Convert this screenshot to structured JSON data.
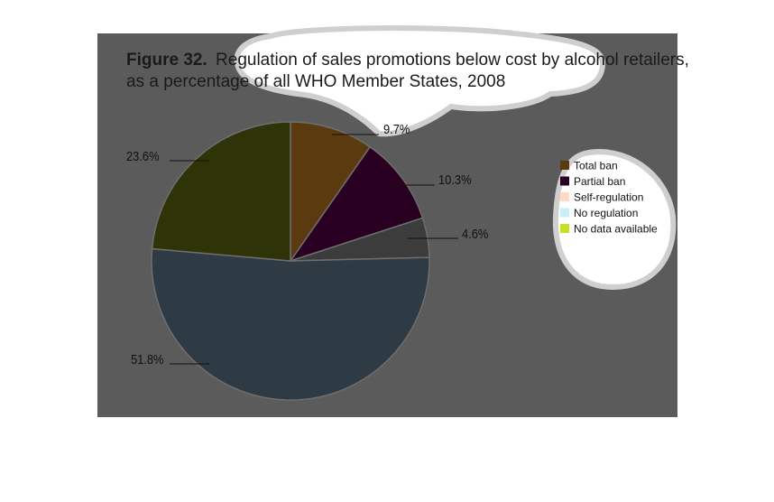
{
  "figure": {
    "number": "Figure 32.",
    "title_line1": "Regulation of sales promotions below cost by alcohol retailers,",
    "title_line2": "as a percentage of all WHO Member States, 2008"
  },
  "chart_data": {
    "type": "pie",
    "title": "Figure 32. Regulation of sales promotions below cost by alcohol retailers, as a percentage of all WHO Member States, 2008",
    "legend_position": "right",
    "slices": [
      {
        "name": "Total ban",
        "value": 9.7,
        "label": "9.7%",
        "color": "#5a3a0e"
      },
      {
        "name": "Partial ban",
        "value": 10.3,
        "label": "10.3%",
        "color": "#2a0022"
      },
      {
        "name": "Self-regulation",
        "value": 4.6,
        "label": "4.6%",
        "color": "#3c3c3c"
      },
      {
        "name": "No regulation",
        "value": 51.8,
        "label": "51.8%",
        "color": "#2e3a44"
      },
      {
        "name": "No data available",
        "value": 23.6,
        "label": "23.6%",
        "color": "#2f3308"
      }
    ],
    "legend": [
      {
        "name": "Total ban",
        "color": "#5a3a0e"
      },
      {
        "name": "Partial ban",
        "color": "#2a0022"
      },
      {
        "name": "Self-regulation",
        "color": "#ffd9c2"
      },
      {
        "name": "No regulation",
        "color": "#c8f0f8"
      },
      {
        "name": "No data available",
        "color": "#c8e020"
      }
    ]
  }
}
